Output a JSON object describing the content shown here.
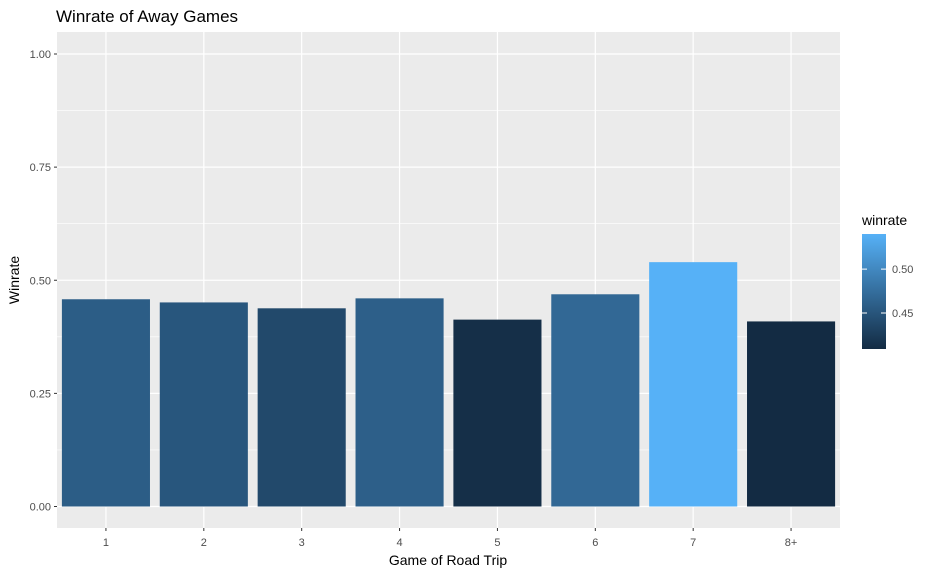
{
  "chart_data": {
    "type": "bar",
    "title": "Winrate of Away Games",
    "xlabel": "Game of Road Trip",
    "ylabel": "Winrate",
    "categories": [
      "1",
      "2",
      "3",
      "4",
      "5",
      "6",
      "7",
      "8+"
    ],
    "values": [
      0.458,
      0.451,
      0.438,
      0.46,
      0.413,
      0.469,
      0.54,
      0.409
    ],
    "ylim": [
      0,
      1.0
    ],
    "yticks": [
      0.0,
      0.25,
      0.5,
      0.75,
      1.0
    ],
    "ytick_labels": [
      "0.00",
      "0.25",
      "0.50",
      "0.75",
      "1.00"
    ],
    "grid": true,
    "legend": {
      "title": "winrate",
      "placement": "right",
      "type": "colorbar",
      "ticks": [
        0.45,
        0.5
      ],
      "tick_labels": [
        "0.45",
        "0.50"
      ],
      "range": [
        0.409,
        0.54
      ]
    },
    "colors": {
      "low": "#132B43",
      "high": "#56B1F7",
      "panel_bg": "#EBEBEB",
      "grid": "#FFFFFF"
    }
  }
}
